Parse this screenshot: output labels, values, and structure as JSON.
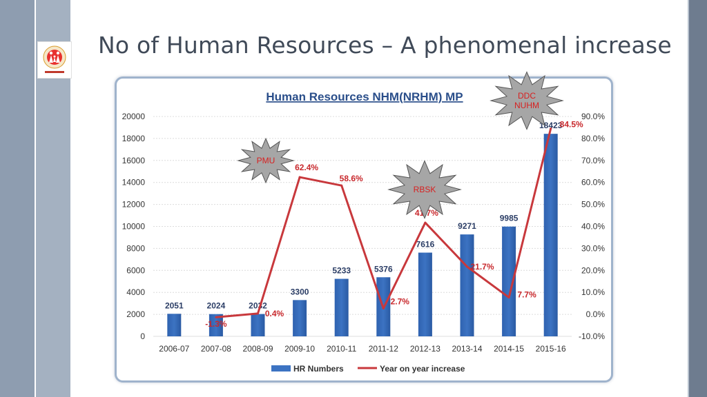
{
  "slide": {
    "title": "No of Human Resources – A phenomenal increase",
    "logo_text": "NATIONAL HEALTH MISSION"
  },
  "colors": {
    "bar": "#3c73c2",
    "line": "#c8383c",
    "title_link": "#2a4e8a"
  },
  "chart_data": {
    "type": "bar+line",
    "title": "Human Resources NHM(NRHM) MP",
    "categories": [
      "2006-07",
      "2007-08",
      "2008-09",
      "2009-10",
      "2010-11",
      "2011-12",
      "2012-13",
      "2013-14",
      "2014-15",
      "2015-16"
    ],
    "series": [
      {
        "name": "HR Numbers",
        "type": "bar",
        "axis": "left",
        "values": [
          2051,
          2024,
          2032,
          3300,
          5233,
          5376,
          7616,
          9271,
          9985,
          18423
        ],
        "labels": [
          "2051",
          "2024",
          "2032",
          "3300",
          "5233",
          "5376",
          "7616",
          "9271",
          "9985",
          "18423"
        ]
      },
      {
        "name": "Year on year increase",
        "type": "line",
        "axis": "right",
        "values": [
          null,
          -1.3,
          0.4,
          62.4,
          58.6,
          2.7,
          41.7,
          21.7,
          7.7,
          84.5
        ],
        "labels": [
          "",
          "-1.3%",
          "0.4%",
          "62.4%",
          "58.6%",
          "2.7%",
          "41.7%",
          "21.7%",
          "7.7%",
          "84.5%"
        ]
      }
    ],
    "y_left": {
      "min": 0,
      "max": 20000,
      "ticks": [
        "0",
        "2000",
        "4000",
        "6000",
        "8000",
        "10000",
        "12000",
        "14000",
        "16000",
        "18000",
        "20000"
      ]
    },
    "y_right": {
      "min": -10,
      "max": 90,
      "ticks": [
        "-10.0%",
        "0.0%",
        "10.0%",
        "20.0%",
        "30.0%",
        "40.0%",
        "50.0%",
        "60.0%",
        "70.0%",
        "80.0%",
        "90.0%"
      ]
    },
    "grid": true,
    "legend_position": "bottom",
    "annotations": [
      {
        "text": "PMU",
        "category": "2008-09"
      },
      {
        "text": "RBSK",
        "category": "2011-12"
      },
      {
        "text": "DDC NUHM",
        "lines": [
          "DDC",
          "NUHM"
        ],
        "category": "2014-15"
      }
    ]
  }
}
